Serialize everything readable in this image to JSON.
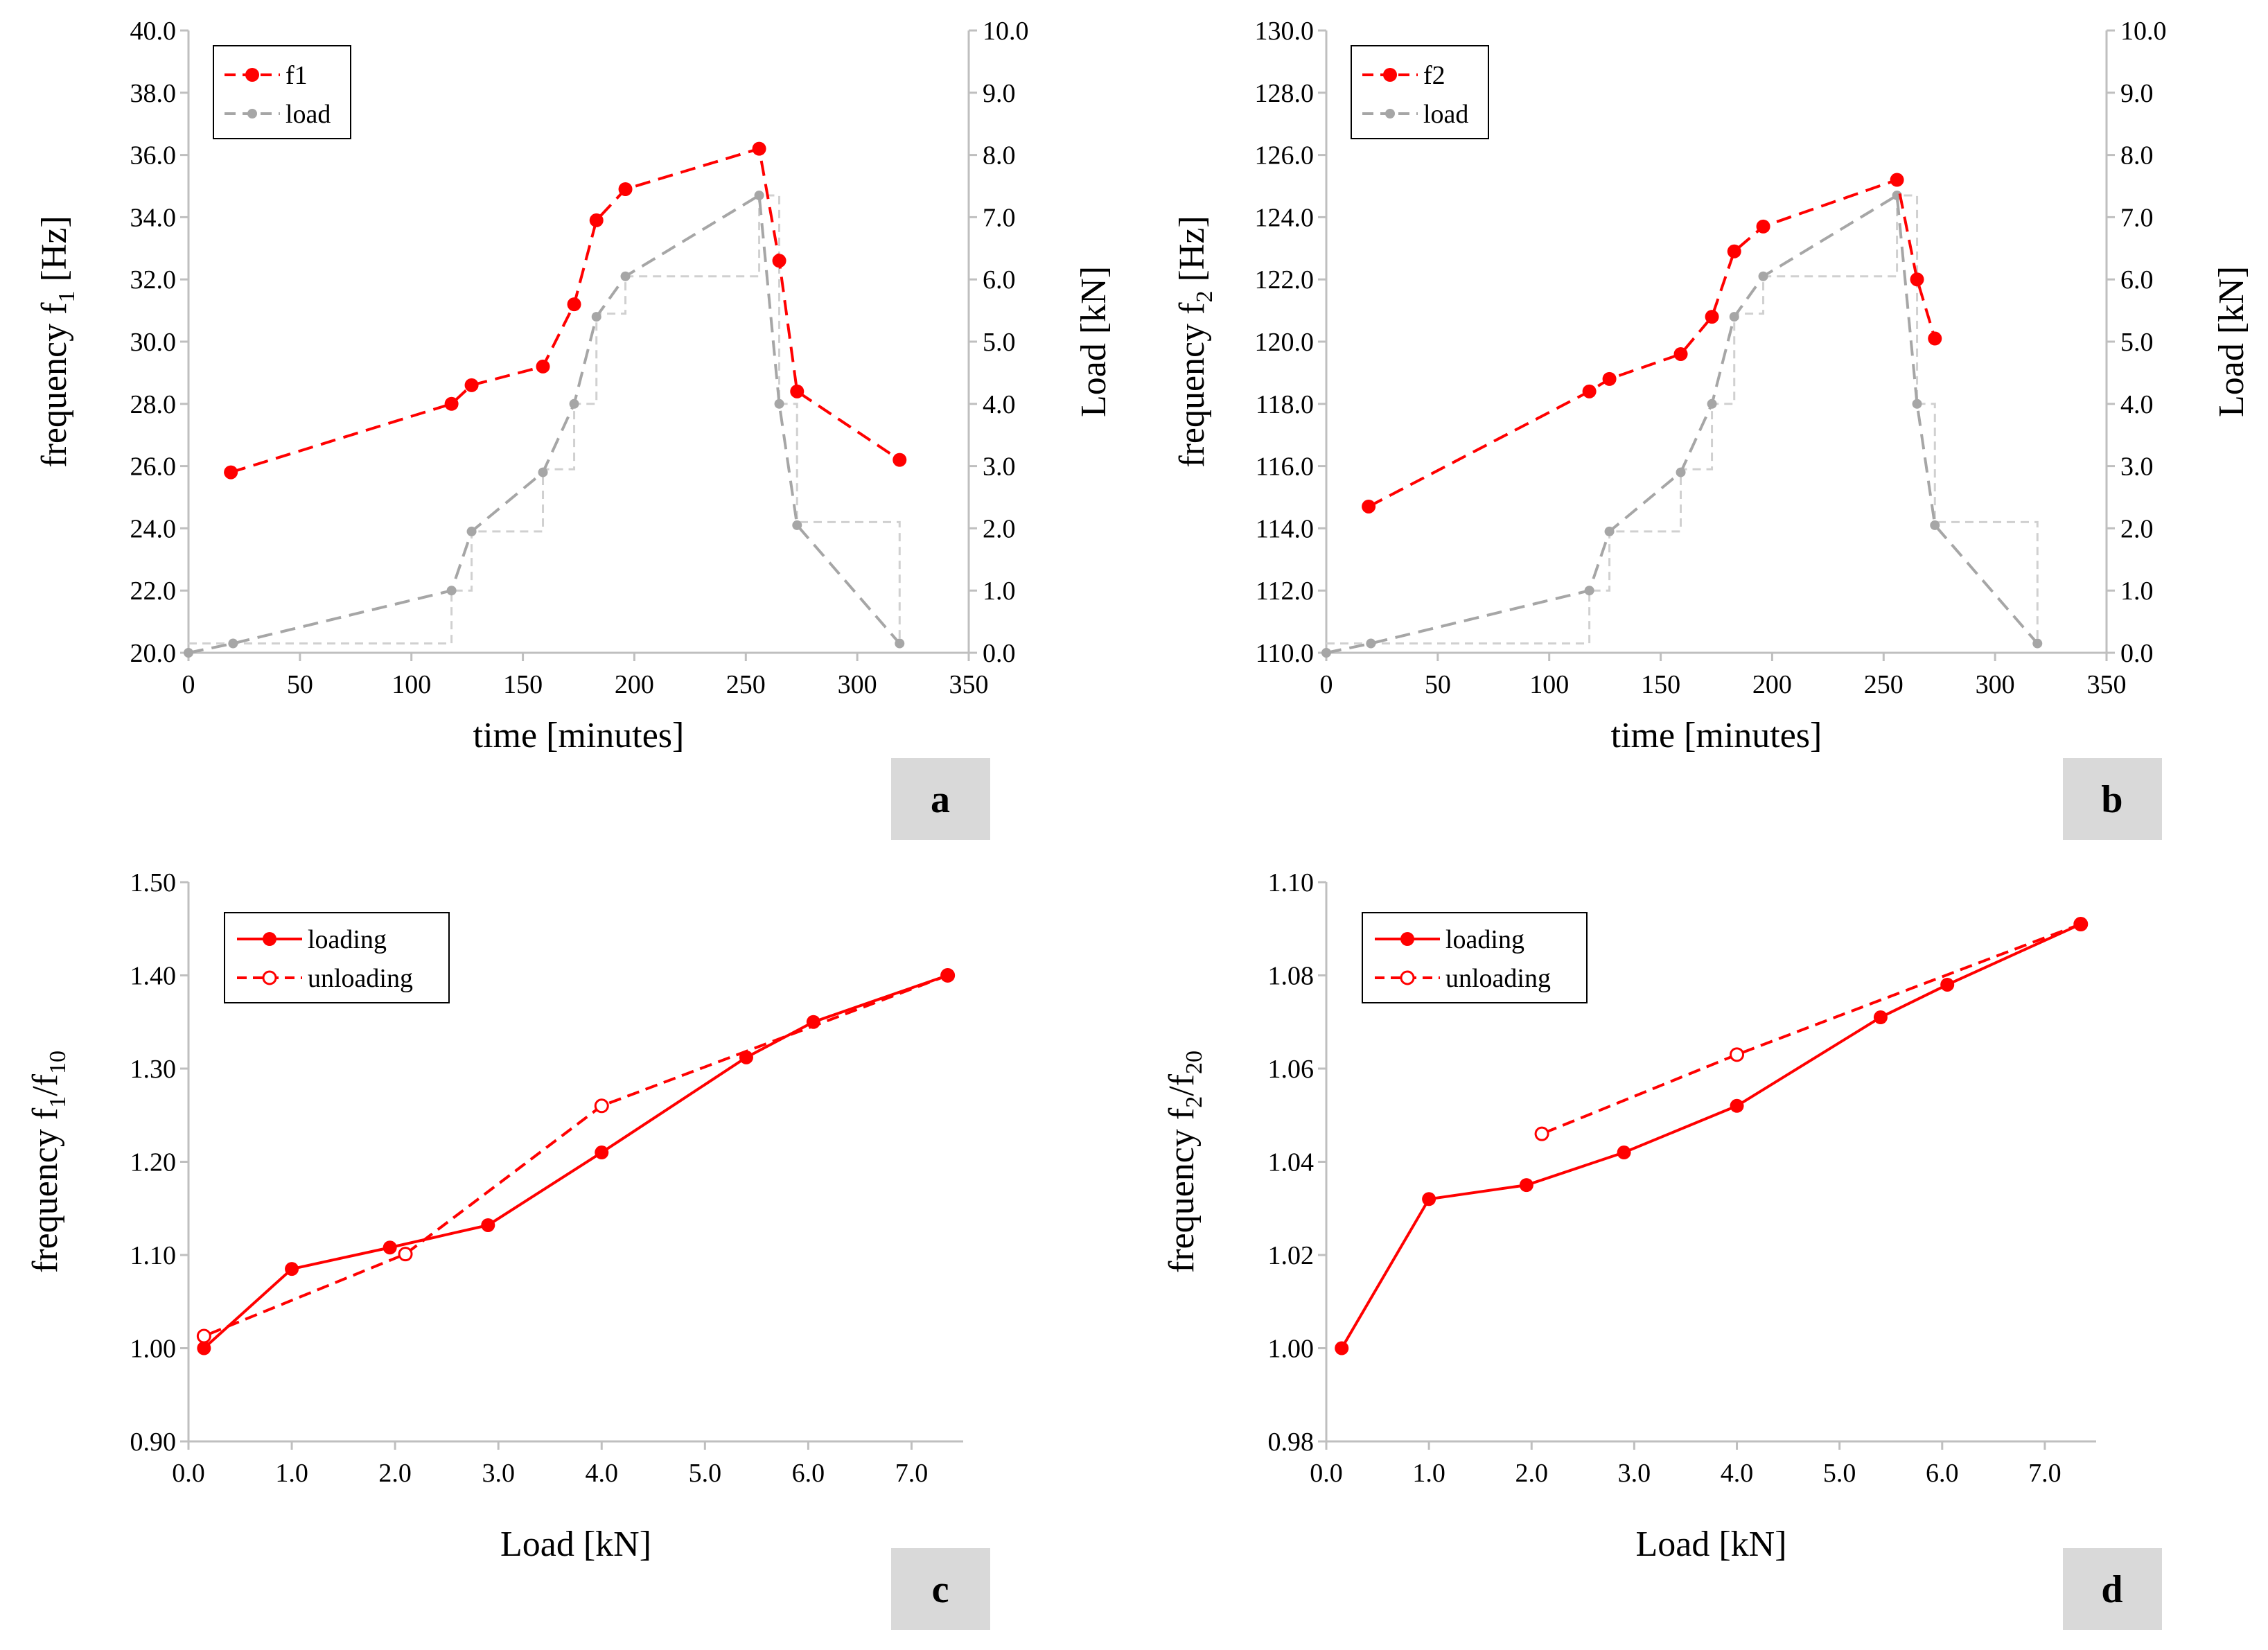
{
  "colors": {
    "red": "#ff0000",
    "grey": "#a6a6a6",
    "stair": "#d0d0d0",
    "axis": "#bfbfbf",
    "badge": "#d9d9d9"
  },
  "chart_data": [
    {
      "id": "a",
      "type": "line",
      "badge": "a",
      "xlabel": "time [minutes]",
      "ylabel": {
        "main": "frequency f",
        "sub": "1",
        "rest": " [Hz]"
      },
      "y2label": "Load [kN]",
      "xlim": [
        0,
        350
      ],
      "ylim": [
        20,
        40
      ],
      "y2lim": [
        0,
        10
      ],
      "xticks": [
        0,
        50,
        100,
        150,
        200,
        250,
        300,
        350
      ],
      "yticks": [
        "20.0",
        "22.0",
        "24.0",
        "26.0",
        "28.0",
        "30.0",
        "32.0",
        "34.0",
        "36.0",
        "38.0",
        "40.0"
      ],
      "y2ticks": [
        "0.0",
        "1.0",
        "2.0",
        "3.0",
        "4.0",
        "5.0",
        "6.0",
        "7.0",
        "8.0",
        "9.0",
        "10.0"
      ],
      "legend": [
        "f1",
        "load"
      ],
      "freq": {
        "name": "f1",
        "x": [
          19,
          118,
          127,
          159,
          173,
          183,
          196,
          256,
          265,
          273,
          319
        ],
        "y": [
          25.8,
          28.0,
          28.6,
          29.2,
          31.2,
          33.9,
          34.9,
          36.2,
          32.6,
          28.4,
          26.2
        ]
      },
      "load": {
        "name": "load",
        "x": [
          0,
          20,
          118,
          127,
          159,
          173,
          183,
          196,
          256,
          265,
          273,
          319
        ],
        "y": [
          0.0,
          0.15,
          1.0,
          1.95,
          2.9,
          4.0,
          5.4,
          6.05,
          7.35,
          4.0,
          2.05,
          0.15
        ]
      },
      "stair": {
        "x": [
          0,
          118,
          118,
          127,
          127,
          159,
          159,
          173,
          173,
          183,
          183,
          196,
          196,
          256,
          256,
          265,
          265,
          273,
          273,
          319,
          319
        ],
        "y": [
          0.15,
          0.15,
          1.0,
          1.0,
          1.95,
          1.95,
          2.95,
          2.95,
          4.0,
          4.0,
          5.45,
          5.45,
          6.05,
          6.05,
          7.35,
          7.35,
          4.0,
          4.0,
          2.1,
          2.1,
          0.15
        ]
      }
    },
    {
      "id": "b",
      "type": "line",
      "badge": "b",
      "xlabel": "time [minutes]",
      "ylabel": {
        "main": "frequency f",
        "sub": "2",
        "rest": " [Hz]"
      },
      "y2label": "Load [kN]",
      "xlim": [
        0,
        350
      ],
      "ylim": [
        110,
        130
      ],
      "y2lim": [
        0,
        10
      ],
      "xticks": [
        0,
        50,
        100,
        150,
        200,
        250,
        300,
        350
      ],
      "yticks": [
        "110.0",
        "112.0",
        "114.0",
        "116.0",
        "118.0",
        "120.0",
        "122.0",
        "124.0",
        "126.0",
        "128.0",
        "130.0"
      ],
      "y2ticks": [
        "0.0",
        "1.0",
        "2.0",
        "3.0",
        "4.0",
        "5.0",
        "6.0",
        "7.0",
        "8.0",
        "9.0",
        "10.0"
      ],
      "legend": [
        "f2",
        "load"
      ],
      "freq": {
        "name": "f2",
        "x": [
          19,
          118,
          127,
          159,
          173,
          183,
          196,
          256,
          265,
          273
        ],
        "y": [
          114.7,
          118.4,
          118.8,
          119.6,
          120.8,
          122.9,
          123.7,
          125.2,
          122.0,
          120.1
        ]
      },
      "load": {
        "name": "load",
        "x": [
          0,
          20,
          118,
          127,
          159,
          173,
          183,
          196,
          256,
          265,
          273,
          319
        ],
        "y": [
          0.0,
          0.15,
          1.0,
          1.95,
          2.9,
          4.0,
          5.4,
          6.05,
          7.35,
          4.0,
          2.05,
          0.15
        ]
      },
      "stair": {
        "x": [
          0,
          118,
          118,
          127,
          127,
          159,
          159,
          173,
          173,
          183,
          183,
          196,
          196,
          256,
          256,
          265,
          265,
          273,
          273,
          319,
          319
        ],
        "y": [
          0.15,
          0.15,
          1.0,
          1.0,
          1.95,
          1.95,
          2.95,
          2.95,
          4.0,
          4.0,
          5.45,
          5.45,
          6.05,
          6.05,
          7.35,
          7.35,
          4.0,
          4.0,
          2.1,
          2.1,
          0.15
        ]
      }
    },
    {
      "id": "c",
      "type": "line",
      "badge": "c",
      "xlabel": "Load [kN]",
      "ylabel": {
        "main": "frequency f",
        "sub": "1",
        "rest": "/f",
        "sub2": "10"
      },
      "xlim": [
        0,
        7.5
      ],
      "ylim": [
        0.9,
        1.5
      ],
      "xticks": [
        "0.0",
        "1.0",
        "2.0",
        "3.0",
        "4.0",
        "5.0",
        "6.0",
        "7.0"
      ],
      "yticks": [
        "0.90",
        "1.00",
        "1.10",
        "1.20",
        "1.30",
        "1.40",
        "1.50"
      ],
      "legend": [
        "loading",
        "unloading"
      ],
      "loading": {
        "x": [
          0.15,
          1.0,
          1.95,
          2.9,
          4.0,
          5.4,
          6.05,
          7.35
        ],
        "y": [
          1.0,
          1.085,
          1.108,
          1.132,
          1.21,
          1.312,
          1.35,
          1.4
        ]
      },
      "unloading": {
        "x": [
          7.35,
          4.0,
          2.1,
          0.15
        ],
        "y": [
          1.4,
          1.26,
          1.101,
          1.013
        ]
      }
    },
    {
      "id": "d",
      "type": "line",
      "badge": "d",
      "xlabel": "Load [kN]",
      "ylabel": {
        "main": "frequency f",
        "sub": "2",
        "rest": "/f",
        "sub2": "20"
      },
      "xlim": [
        0,
        7.5
      ],
      "ylim": [
        0.98,
        1.1
      ],
      "xticks": [
        "0.0",
        "1.0",
        "2.0",
        "3.0",
        "4.0",
        "5.0",
        "6.0",
        "7.0"
      ],
      "yticks": [
        "0.98",
        "1.00",
        "1.02",
        "1.04",
        "1.06",
        "1.08",
        "1.10"
      ],
      "legend": [
        "loading",
        "unloading"
      ],
      "loading": {
        "x": [
          0.15,
          1.0,
          1.95,
          2.9,
          4.0,
          5.4,
          6.05,
          7.35
        ],
        "y": [
          1.0,
          1.032,
          1.035,
          1.042,
          1.052,
          1.071,
          1.078,
          1.091
        ]
      },
      "unloading": {
        "x": [
          7.35,
          4.0,
          2.1
        ],
        "y": [
          1.091,
          1.063,
          1.046
        ]
      }
    }
  ]
}
